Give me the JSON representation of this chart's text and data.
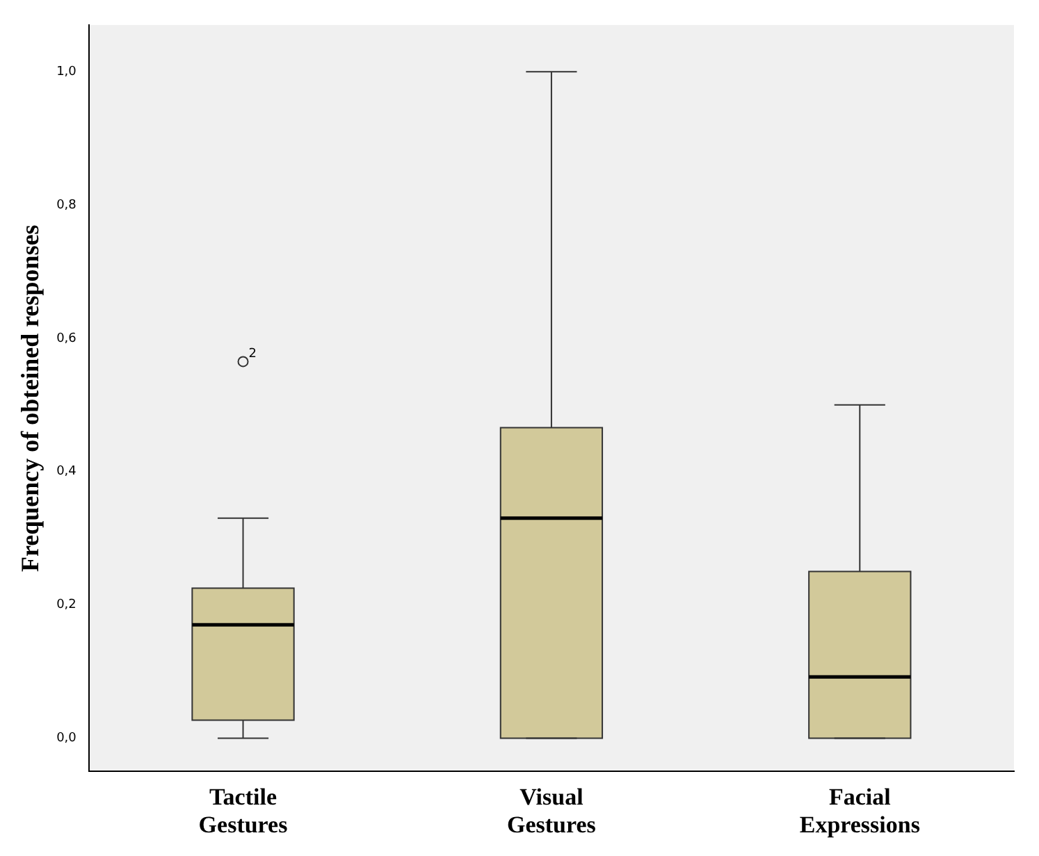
{
  "chart_data": {
    "type": "box",
    "ylabel": "Frequency of obteined responses",
    "categories": [
      "Tactile Gestures",
      "Visual Gestures",
      "Facial Expressions"
    ],
    "color": "#d2c99a",
    "boxes": [
      {
        "low": 0,
        "q1": 0.027,
        "median": 0.17,
        "q3": 0.225,
        "high": 0.33,
        "outliers": [
          0.565
        ]
      },
      {
        "low": 0,
        "q1": 0,
        "median": 0.33,
        "q3": 0.466,
        "high": 1.0
      },
      {
        "low": 0,
        "q1": 0,
        "median": 0.092,
        "q3": 0.25,
        "high": 0.5
      }
    ],
    "ylim": [
      -0.05,
      1.07
    ],
    "yticks": [
      {
        "value": 0,
        "label": "0,0"
      },
      {
        "value": 0.2,
        "label": "0,2"
      },
      {
        "value": 0.4,
        "label": "0,4"
      },
      {
        "value": 0.6,
        "label": "0,6"
      },
      {
        "value": 0.8,
        "label": "0,8"
      },
      {
        "value": 1.0,
        "label": "1,0"
      }
    ],
    "annotations": [
      "2"
    ],
    "grid": false,
    "legend": false
  }
}
